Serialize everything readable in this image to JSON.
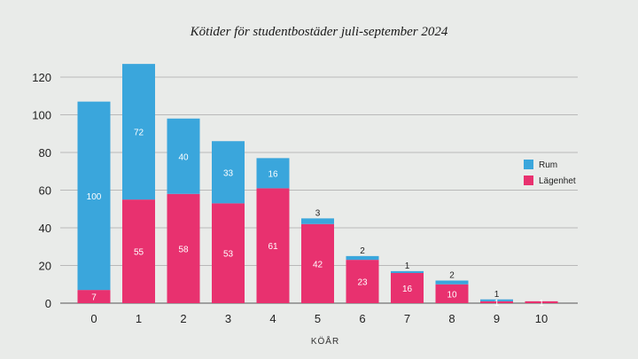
{
  "chart_data": {
    "type": "bar",
    "stacked": true,
    "title": "Kötider för studentbostäder juli-september 2024",
    "xlabel": "KÖÅR",
    "ylabel": "",
    "ylim": [
      0,
      130
    ],
    "yticks": [
      0,
      20,
      40,
      60,
      80,
      100,
      120
    ],
    "grid": true,
    "legend_position": "right",
    "categories": [
      "0",
      "1",
      "2",
      "3",
      "4",
      "5",
      "6",
      "7",
      "8",
      "9",
      "10"
    ],
    "series": [
      {
        "name": "Lägenhet",
        "color": "#e8316f",
        "values": [
          7,
          55,
          58,
          53,
          61,
          42,
          23,
          16,
          10,
          1,
          1
        ]
      },
      {
        "name": "Rum",
        "color": "#3aa6dc",
        "values": [
          100,
          72,
          40,
          33,
          16,
          3,
          2,
          1,
          2,
          1,
          0
        ]
      }
    ]
  }
}
